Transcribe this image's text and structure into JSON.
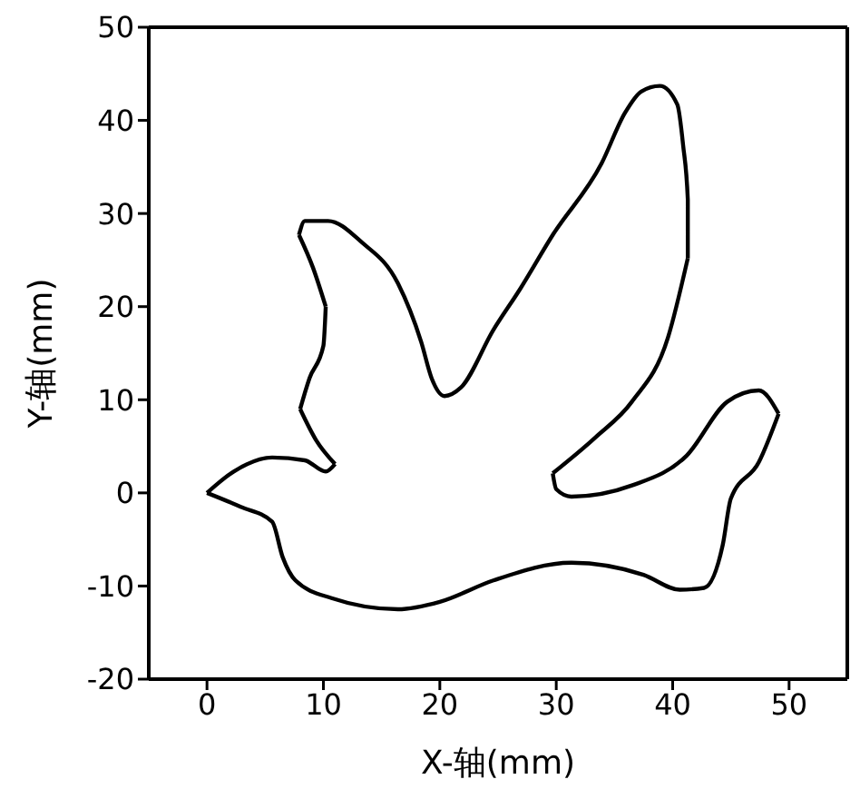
{
  "chart_data": {
    "type": "line",
    "xlabel": "X-轴(mm)",
    "ylabel": "Y-轴(mm)",
    "marker": "none",
    "series": [
      {
        "color": "#000000",
        "x": [
          0,
          2.3,
          5.6,
          8.4,
          10.2,
          11.0
        ],
        "values": [
          0,
          2.3,
          3.8,
          3.5,
          2.3,
          3.1
        ]
      },
      {
        "color": "#000000",
        "x": [
          11.0,
          9.4,
          8.0
        ],
        "values": [
          3.1,
          5.6,
          9.0
        ]
      },
      {
        "color": "#000000",
        "x": [
          8.0,
          8.8,
          10.0,
          10.2
        ],
        "values": [
          9.0,
          12.3,
          15.8,
          20.0
        ]
      },
      {
        "color": "#000000",
        "x": [
          10.2,
          9.1,
          7.9
        ],
        "values": [
          20.0,
          24.2,
          27.7
        ]
      },
      {
        "color": "#000000",
        "x": [
          7.9,
          8.4,
          10.4,
          13.3,
          16.4,
          18.4,
          19.3,
          20.4,
          21.8,
          24.6,
          26.9,
          29.7,
          33.9,
          35.9,
          37.3,
          38.9,
          40.4,
          40.9,
          41.3,
          41.3
        ],
        "values": [
          27.7,
          29.2,
          29.2,
          26.9,
          22.5,
          16.2,
          12.3,
          10.4,
          11.3,
          17.5,
          21.9,
          27.7,
          35.4,
          40.8,
          43.1,
          43.7,
          41.7,
          37.3,
          31.5,
          25.2
        ]
      },
      {
        "color": "#000000",
        "x": [
          41.3,
          39.6,
          36.5,
          33.4,
          29.7
        ],
        "values": [
          25.2,
          16.7,
          9.8,
          6.0,
          2.1
        ]
      },
      {
        "color": "#000000",
        "x": [
          29.7,
          30.0,
          31.3,
          36.5,
          41.2,
          44.7,
          47.4,
          49.1
        ],
        "values": [
          2.1,
          0.4,
          -0.4,
          0.8,
          4.0,
          9.8,
          11.0,
          8.5
        ]
      },
      {
        "color": "#000000",
        "x": [
          49.1,
          47.4,
          45.0,
          44.3,
          42.7,
          40.6,
          37.5,
          31.3,
          24.6,
          20.0,
          16.4,
          10.7,
          7.6,
          6.5,
          5.6,
          2.9,
          0
        ],
        "values": [
          8.5,
          3.3,
          -0.6,
          -5.6,
          -10.2,
          -10.4,
          -8.8,
          -7.5,
          -9.4,
          -11.7,
          -12.5,
          -11.3,
          -9.4,
          -6.9,
          -3.1,
          -1.5,
          0
        ]
      }
    ],
    "xlim": [
      -5,
      55
    ],
    "xticks": [
      0,
      10,
      20,
      30,
      40,
      50
    ],
    "ylim": [
      -20,
      50
    ],
    "yticks": [
      -20,
      -10,
      0,
      10,
      20,
      30,
      40,
      50
    ]
  }
}
